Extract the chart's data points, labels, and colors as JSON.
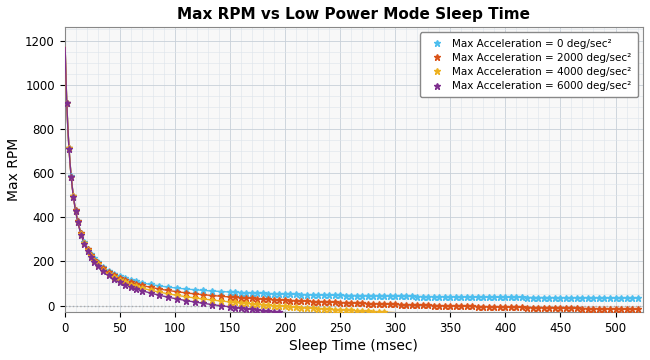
{
  "title": "Max RPM vs Low Power Mode Sleep Time",
  "xlabel": "Sleep Time (msec)",
  "ylabel": "Max RPM",
  "xlim": [
    0,
    525
  ],
  "ylim": [
    -30,
    1260
  ],
  "xticks": [
    0,
    50,
    100,
    150,
    200,
    250,
    300,
    350,
    400,
    450,
    500
  ],
  "yticks": [
    0,
    200,
    400,
    600,
    800,
    1000,
    1200
  ],
  "series": [
    {
      "label": "Max Acceleration = 0 deg/sec²",
      "color": "#4DBEEE",
      "accel": 0,
      "A": 6080,
      "b": 4.8,
      "asymptote": 22,
      "penalty_scale": 0.0
    },
    {
      "label": "Max Acceleration = 2000 deg/sec²",
      "color": "#D95319",
      "accel": 2000,
      "A": 6080,
      "b": 4.8,
      "asymptote": 22,
      "penalty_scale": 9.5e-05
    },
    {
      "label": "Max Acceleration = 4000 deg/sec²",
      "color": "#EDB120",
      "accel": 4000,
      "A": 6080,
      "b": 4.8,
      "asymptote": 22,
      "penalty_scale": 9.5e-05
    },
    {
      "label": "Max Acceleration = 6000 deg/sec²",
      "color": "#7E2F8E",
      "accel": 6000,
      "A": 6080,
      "b": 4.8,
      "asymptote": 22,
      "penalty_scale": 9.5e-05
    }
  ],
  "bg_color": "#f8f8f8",
  "grid_color": "#c8d0d8",
  "grid_minor_color": "#dde4eb",
  "hline_color": "#aaaaaa"
}
